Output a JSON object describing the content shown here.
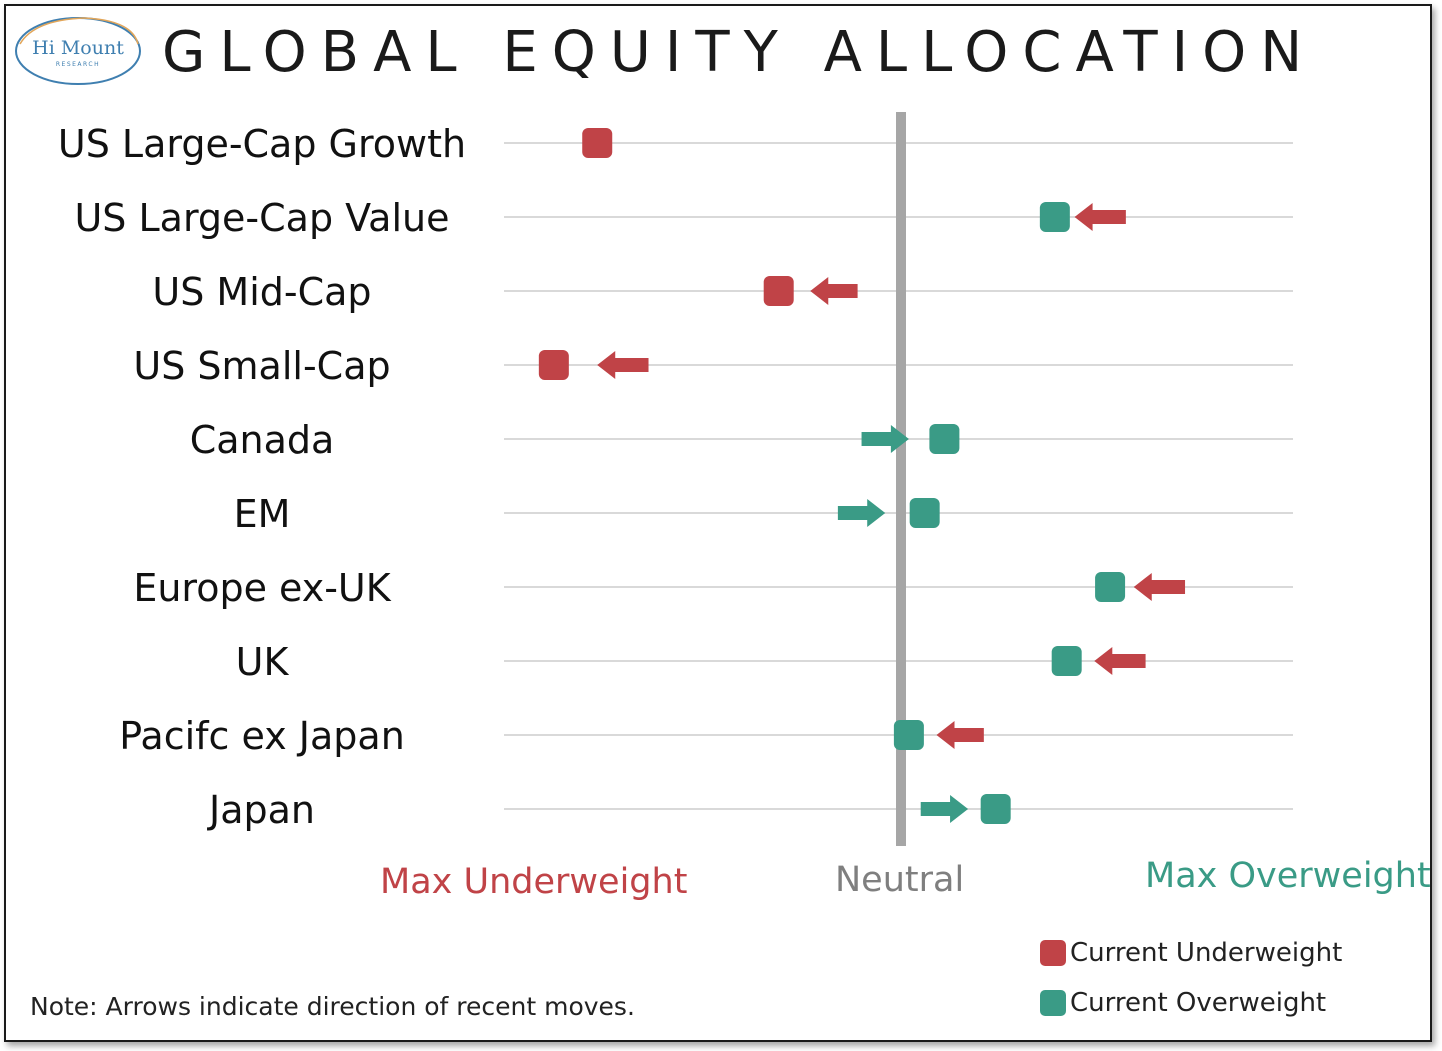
{
  "logo": {
    "line1": "Hi Mount",
    "line2": "RESEARCH"
  },
  "colors": {
    "underweight": "#c04347",
    "overweight": "#3a9b86",
    "neutral": "#a6a6a6",
    "grid": "#d9d9d9"
  },
  "labels": {
    "max_under": "Max Underweight",
    "neutral": "Neutral",
    "max_over": "Max Overweight"
  },
  "legend": {
    "under": "Current Underweight",
    "over": "Current Overweight"
  },
  "note": "Note: Arrows indicate direction of recent moves.",
  "chart_data": {
    "type": "scatter",
    "title": "GLOBAL EQUITY ALLOCATION",
    "xlim": [
      -1,
      1
    ],
    "categories": [
      "US Large-Cap Growth",
      "US Large-Cap Value",
      "US Mid-Cap",
      "US Small-Cap",
      "Canada",
      "EM",
      "Europe ex-UK",
      "UK",
      "Pacifc ex Japan",
      "Japan"
    ],
    "series": [
      {
        "name": "Current Underweight",
        "points": [
          {
            "category": "US Large-Cap Growth",
            "value": -0.77
          },
          {
            "category": "US Mid-Cap",
            "value": -0.31
          },
          {
            "category": "US Small-Cap",
            "value": -0.88
          }
        ]
      },
      {
        "name": "Current Overweight",
        "points": [
          {
            "category": "US Large-Cap Value",
            "value": 0.39
          },
          {
            "category": "Canada",
            "value": 0.11
          },
          {
            "category": "EM",
            "value": 0.06
          },
          {
            "category": "Europe ex-UK",
            "value": 0.53
          },
          {
            "category": "UK",
            "value": 0.42
          },
          {
            "category": "Pacifc ex Japan",
            "value": 0.02
          },
          {
            "category": "Japan",
            "value": 0.24
          }
        ]
      }
    ],
    "arrows": [
      {
        "category": "US Large-Cap Value",
        "direction": "left",
        "from": 0.57,
        "to": 0.44
      },
      {
        "category": "US Mid-Cap",
        "direction": "left",
        "from": -0.11,
        "to": -0.23
      },
      {
        "category": "US Small-Cap",
        "direction": "left",
        "from": -0.64,
        "to": -0.77
      },
      {
        "category": "Canada",
        "direction": "right",
        "from": -0.1,
        "to": 0.02
      },
      {
        "category": "EM",
        "direction": "right",
        "from": -0.16,
        "to": -0.04
      },
      {
        "category": "Europe ex-UK",
        "direction": "left",
        "from": 0.72,
        "to": 0.59
      },
      {
        "category": "UK",
        "direction": "left",
        "from": 0.62,
        "to": 0.49
      },
      {
        "category": "Pacifc ex Japan",
        "direction": "left",
        "from": 0.21,
        "to": 0.09
      },
      {
        "category": "Japan",
        "direction": "right",
        "from": 0.05,
        "to": 0.17
      }
    ]
  }
}
